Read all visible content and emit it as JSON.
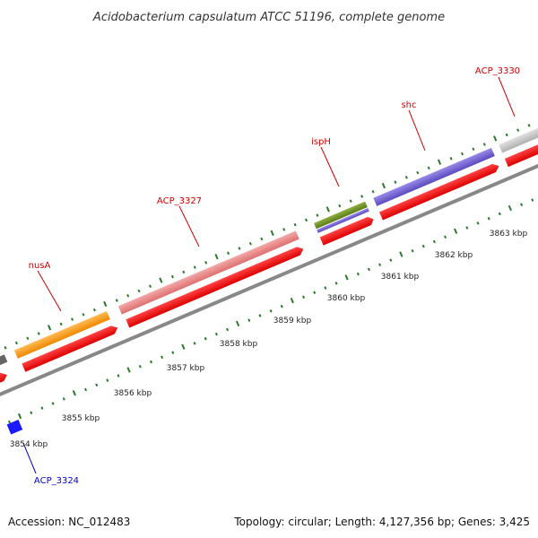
{
  "title": "Acidobacterium capsulatum ATCC 51196, complete genome",
  "footer": {
    "accession": "Accession: NC_012483",
    "summary": "Topology: circular; Length: 4,127,356 bp; Genes: 3,425"
  },
  "kbp_labels": [
    "3854 kbp",
    "3855 kbp",
    "3856 kbp",
    "3857 kbp",
    "3858 kbp",
    "3859 kbp",
    "3860 kbp",
    "3861 kbp",
    "3862 kbp",
    "3863 kbp"
  ],
  "gene_labels": [
    {
      "name": "nusA",
      "color": "#cc0000"
    },
    {
      "name": "ACP_3327",
      "color": "#cc0000"
    },
    {
      "name": "ispH",
      "color": "#cc0000"
    },
    {
      "name": "shc",
      "color": "#cc0000"
    },
    {
      "name": "ACP_3330",
      "color": "#cc0000"
    },
    {
      "name": "ACP_3324",
      "color": "#0000cc"
    }
  ],
  "colors": {
    "cds": "#ee0000",
    "backbone": "#888888",
    "ticks": "#2a7a2a",
    "nusA": "#ff9900",
    "ACP_3327": "#e88080",
    "ispH": "#6b8e23",
    "shc": "#6a5acd",
    "ACP_3330": "#c8c8c8",
    "dark_gene": "#555555",
    "blue_gene": "#1a1aff"
  }
}
